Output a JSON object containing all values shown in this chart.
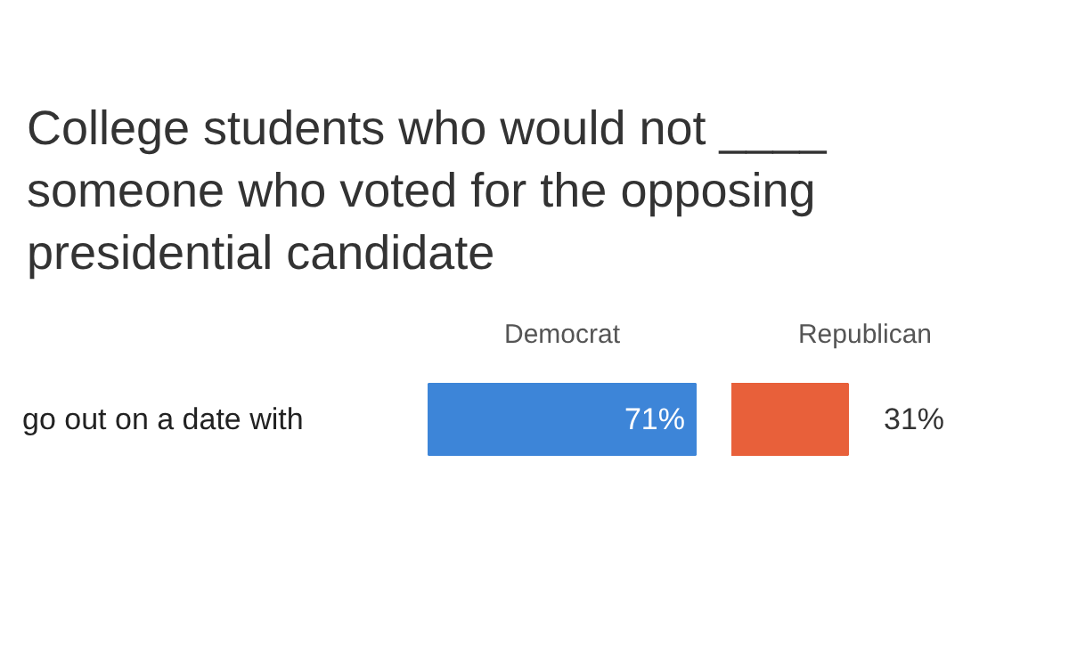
{
  "chart_data": [
    {
      "type": "bar",
      "orientation": "horizontal",
      "title": "College students who would not ____ someone who voted for the opposing presidential candidate",
      "categories": [
        "go out on a date with"
      ],
      "legend": "top",
      "series": [
        {
          "name": "Democrat",
          "color": "#3d85d8",
          "values": [
            71
          ],
          "value_labels": [
            "71%"
          ]
        }
      ]
    },
    {
      "type": "bar",
      "orientation": "horizontal",
      "categories": [
        null
      ],
      "legend": "top",
      "series": [
        {
          "name": "Republican",
          "color": "#e8603a",
          "values": [
            31
          ],
          "value_labels": [
            "31%"
          ]
        }
      ]
    }
  ]
}
